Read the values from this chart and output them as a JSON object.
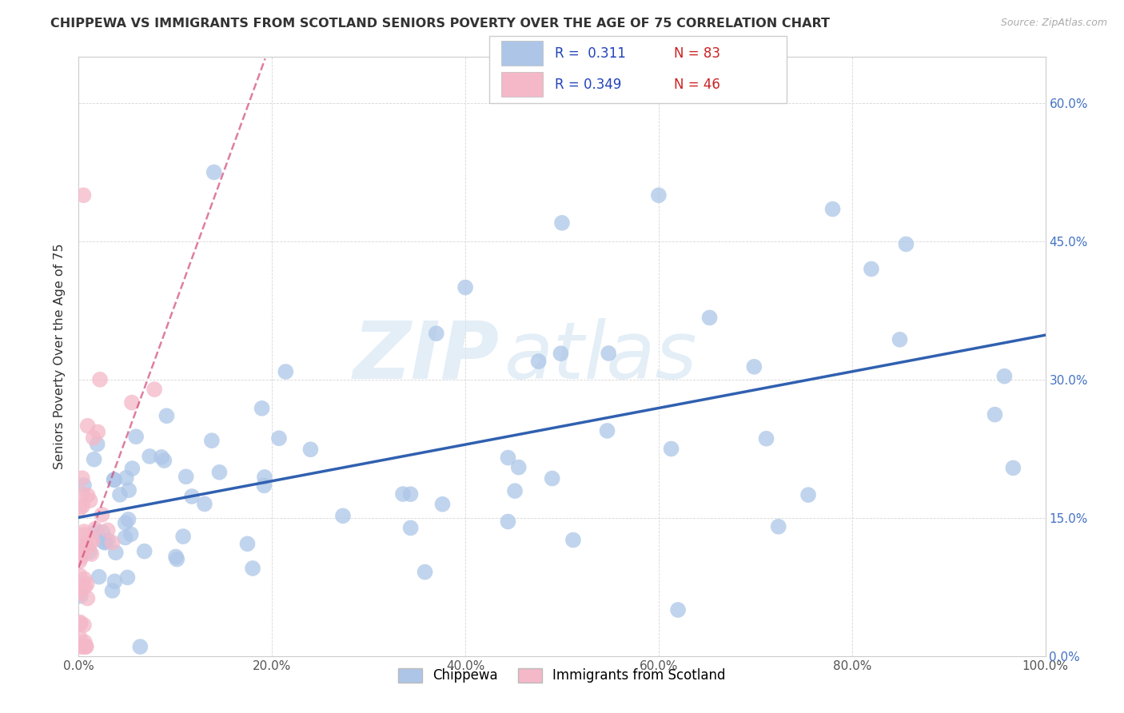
{
  "title": "CHIPPEWA VS IMMIGRANTS FROM SCOTLAND SENIORS POVERTY OVER THE AGE OF 75 CORRELATION CHART",
  "source_text": "Source: ZipAtlas.com",
  "ylabel": "Seniors Poverty Over the Age of 75",
  "xlim": [
    0.0,
    1.0
  ],
  "ylim": [
    0.0,
    0.65
  ],
  "x_tick_labels": [
    "0.0%",
    "20.0%",
    "40.0%",
    "60.0%",
    "80.0%",
    "100.0%"
  ],
  "y_tick_labels_right": [
    "0.0%",
    "15.0%",
    "30.0%",
    "45.0%",
    "60.0%"
  ],
  "chippewa_R": "0.311",
  "chippewa_N": "83",
  "scotland_R": "0.349",
  "scotland_N": "46",
  "chippewa_color": "#adc6e8",
  "scotland_color": "#f4b8c8",
  "chippewa_line_color": "#3060b0",
  "scotland_line_color": "#d04878",
  "watermark_zip": "ZIP",
  "watermark_atlas": "atlas",
  "background_color": "#ffffff",
  "title_color": "#333333",
  "right_axis_color": "#4472c4",
  "legend_R_color": "#2244bb"
}
